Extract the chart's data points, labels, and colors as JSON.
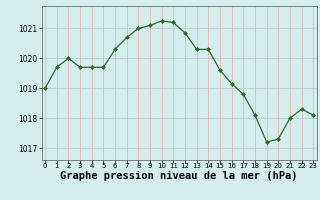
{
  "x": [
    0,
    1,
    2,
    3,
    4,
    5,
    6,
    7,
    8,
    9,
    10,
    11,
    12,
    13,
    14,
    15,
    16,
    17,
    18,
    19,
    20,
    21,
    22,
    23
  ],
  "y": [
    1019.0,
    1019.7,
    1020.0,
    1019.7,
    1019.7,
    1019.7,
    1020.3,
    1020.7,
    1021.0,
    1021.1,
    1021.25,
    1021.2,
    1020.85,
    1020.3,
    1020.3,
    1019.6,
    1019.15,
    1018.8,
    1018.1,
    1017.2,
    1017.3,
    1018.0,
    1018.3,
    1018.1
  ],
  "line_color": "#2d6a2d",
  "marker": "D",
  "bg_color": "#d4eeee",
  "grid_color_v": "#e8b8b8",
  "grid_color_h": "#b8d0d0",
  "xlabel": "Graphe pression niveau de la mer (hPa)",
  "xlabel_fontsize": 7.5,
  "ylabel_ticks": [
    1017,
    1018,
    1019,
    1020,
    1021
  ],
  "xlim": [
    -0.3,
    23.3
  ],
  "ylim": [
    1016.6,
    1021.75
  ],
  "xticks": [
    0,
    1,
    2,
    3,
    4,
    5,
    6,
    7,
    8,
    9,
    10,
    11,
    12,
    13,
    14,
    15,
    16,
    17,
    18,
    19,
    20,
    21,
    22,
    23
  ]
}
